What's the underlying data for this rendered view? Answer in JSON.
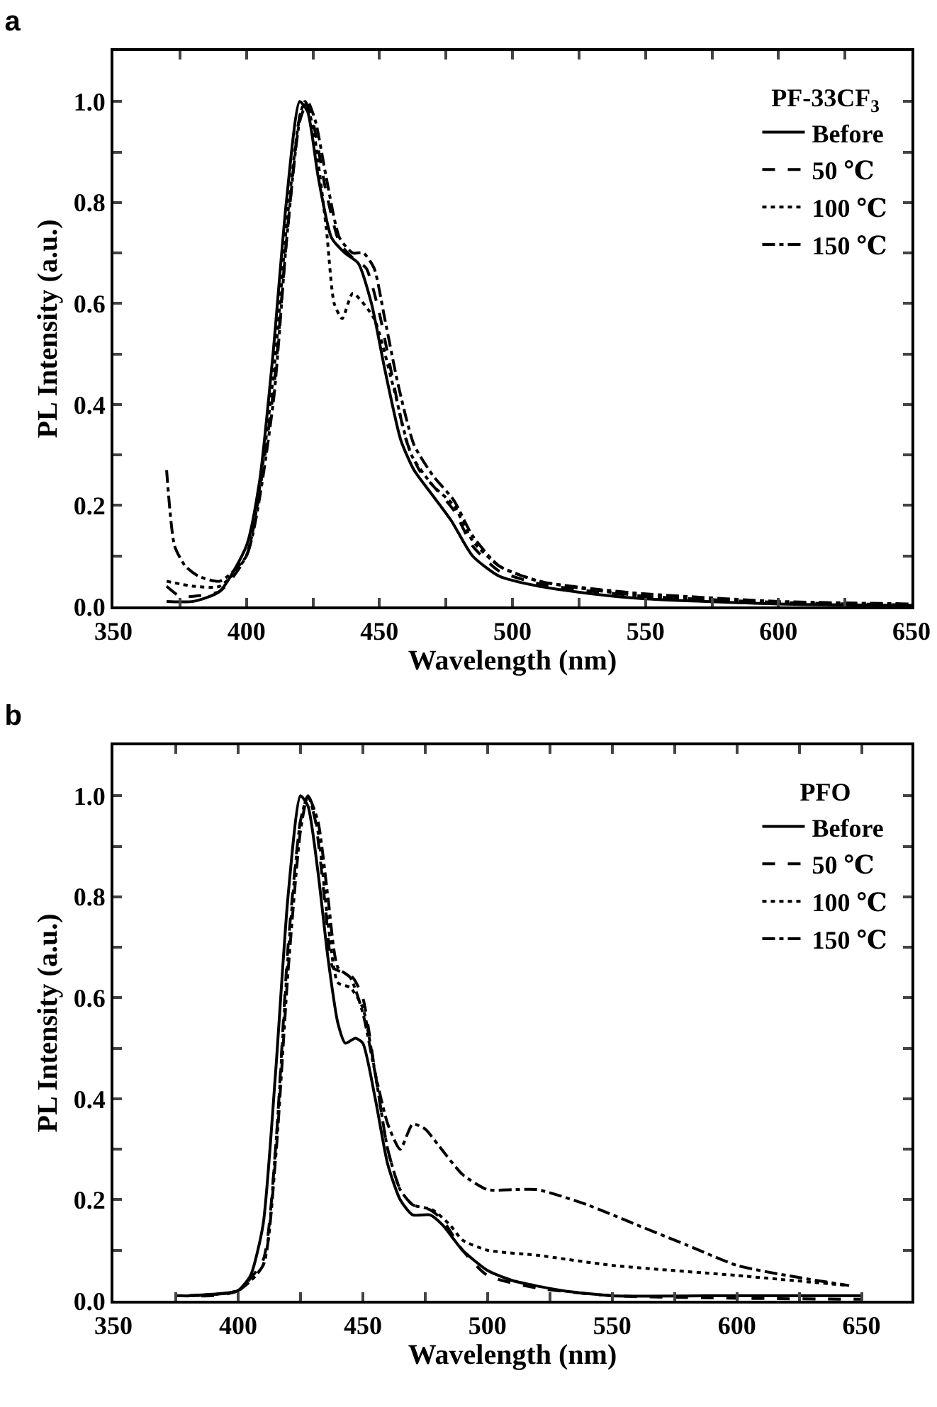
{
  "chart_data": [
    {
      "type": "line",
      "title": "a",
      "xlabel": "Wavelength (nm)",
      "ylabel": "PL Intensity (a.u.)",
      "legend_title": "PF-33CF$_{3}$",
      "legend": "top right",
      "grid": false,
      "xlim": [
        350,
        650
      ],
      "ylim": [
        0,
        1.1
      ],
      "xticks": [
        350,
        {
          "value": 375,
          "label": null
        },
        400,
        {
          "value": 425,
          "label": null
        },
        450,
        {
          "value": 475,
          "label": null
        },
        500,
        {
          "value": 525,
          "label": null
        },
        550,
        {
          "value": 575,
          "label": null
        },
        600,
        {
          "value": 625,
          "label": null
        },
        650
      ],
      "yticks": [
        {
          "value": 0,
          "label": "0.0"
        },
        {
          "value": 0.1,
          "label": null
        },
        0.2,
        {
          "value": 0.3,
          "label": null
        },
        0.4,
        {
          "value": 0.5,
          "label": null
        },
        0.6,
        {
          "value": 0.7,
          "label": null
        },
        0.8,
        {
          "value": 0.9,
          "label": null
        },
        {
          "value": 1,
          "label": "1.0"
        }
      ],
      "series": [
        {
          "name": "Before",
          "color": "#000000",
          "line_style": "solid",
          "x": [
            370,
            380,
            390,
            400,
            405,
            410,
            415,
            420,
            423,
            427,
            432,
            437,
            442,
            447,
            452,
            458,
            463,
            470,
            477,
            485,
            495,
            510,
            530,
            550,
            600,
            650
          ],
          "values": [
            0.01,
            0.01,
            0.03,
            0.12,
            0.25,
            0.5,
            0.8,
            1.0,
            0.98,
            0.85,
            0.73,
            0.7,
            0.68,
            0.6,
            0.47,
            0.33,
            0.27,
            0.22,
            0.17,
            0.1,
            0.06,
            0.04,
            0.025,
            0.015,
            0.005,
            0.002
          ]
        },
        {
          "name": "50 ℃",
          "color": "#000000",
          "line_style": "dashed",
          "x": [
            370,
            375,
            380,
            390,
            400,
            410,
            415,
            420,
            422,
            425,
            430,
            435,
            440,
            445,
            450,
            455,
            460,
            465,
            470,
            478,
            485,
            495,
            510,
            530,
            550,
            600,
            650
          ],
          "values": [
            0.04,
            0.02,
            0.02,
            0.03,
            0.1,
            0.42,
            0.72,
            0.97,
            1.0,
            0.96,
            0.82,
            0.72,
            0.69,
            0.67,
            0.58,
            0.45,
            0.33,
            0.27,
            0.24,
            0.19,
            0.12,
            0.07,
            0.045,
            0.03,
            0.02,
            0.008,
            0.003
          ]
        },
        {
          "name": "100 ℃",
          "color": "#000000",
          "line_style": "dotted",
          "x": [
            370,
            380,
            390,
            400,
            410,
            415,
            420,
            422,
            425,
            430,
            433,
            436,
            440,
            448,
            455,
            462,
            470,
            478,
            485,
            495,
            510,
            550,
            600,
            650
          ],
          "values": [
            0.05,
            0.04,
            0.04,
            0.1,
            0.45,
            0.75,
            0.97,
            1.0,
            0.95,
            0.75,
            0.6,
            0.57,
            0.62,
            0.57,
            0.44,
            0.3,
            0.24,
            0.2,
            0.13,
            0.08,
            0.05,
            0.02,
            0.008,
            0.003
          ]
        },
        {
          "name": "150 ℃",
          "color": "#000000",
          "line_style": "dashdot",
          "x": [
            370,
            373,
            377,
            382,
            390,
            400,
            410,
            415,
            420,
            423,
            426,
            430,
            435,
            440,
            444,
            448,
            452,
            457,
            463,
            470,
            478,
            485,
            495,
            510,
            530,
            550,
            600,
            650
          ],
          "values": [
            0.27,
            0.12,
            0.08,
            0.06,
            0.05,
            0.1,
            0.4,
            0.72,
            0.96,
            1.0,
            0.96,
            0.85,
            0.73,
            0.7,
            0.7,
            0.67,
            0.57,
            0.44,
            0.32,
            0.26,
            0.21,
            0.14,
            0.08,
            0.05,
            0.035,
            0.025,
            0.01,
            0.005
          ]
        }
      ]
    },
    {
      "type": "line",
      "title": "b",
      "xlabel": "Wavelength (nm)",
      "ylabel": "PL Intensity (a.u.)",
      "legend_title": "PFO",
      "legend": "top right",
      "grid": false,
      "xlim": [
        350,
        670
      ],
      "ylim": [
        0,
        1.1
      ],
      "xticks": [
        350,
        {
          "value": 375,
          "label": null
        },
        400,
        {
          "value": 425,
          "label": null
        },
        450,
        {
          "value": 475,
          "label": null
        },
        500,
        {
          "value": 525,
          "label": null
        },
        550,
        {
          "value": 575,
          "label": null
        },
        600,
        {
          "value": 625,
          "label": null
        },
        650
      ],
      "yticks": [
        {
          "value": 0,
          "label": "0.0"
        },
        {
          "value": 0.1,
          "label": null
        },
        0.2,
        {
          "value": 0.3,
          "label": null
        },
        0.4,
        {
          "value": 0.5,
          "label": null
        },
        0.6,
        {
          "value": 0.7,
          "label": null
        },
        0.8,
        {
          "value": 0.9,
          "label": null
        },
        {
          "value": 1,
          "label": "1.0"
        }
      ],
      "series": [
        {
          "name": "Before",
          "color": "#000000",
          "line_style": "solid",
          "x": [
            380,
            395,
            400,
            405,
            410,
            415,
            420,
            425,
            428,
            432,
            436,
            440,
            443,
            447,
            450,
            455,
            460,
            465,
            470,
            477,
            482,
            490,
            500,
            510,
            530,
            550,
            600,
            650
          ],
          "values": [
            0.01,
            0.015,
            0.02,
            0.05,
            0.15,
            0.45,
            0.8,
            1.0,
            0.98,
            0.85,
            0.68,
            0.55,
            0.51,
            0.52,
            0.51,
            0.4,
            0.27,
            0.2,
            0.17,
            0.17,
            0.15,
            0.1,
            0.06,
            0.04,
            0.02,
            0.01,
            0.01,
            0.01
          ]
        },
        {
          "name": "50 ℃",
          "color": "#000000",
          "line_style": "dashed",
          "x": [
            375,
            390,
            400,
            410,
            415,
            420,
            425,
            428,
            431,
            435,
            438,
            442,
            446,
            450,
            455,
            460,
            465,
            470,
            477,
            482,
            490,
            500,
            520,
            550,
            600,
            650
          ],
          "values": [
            0.01,
            0.01,
            0.02,
            0.08,
            0.3,
            0.7,
            0.95,
            1.0,
            0.95,
            0.78,
            0.66,
            0.65,
            0.64,
            0.6,
            0.45,
            0.3,
            0.22,
            0.19,
            0.18,
            0.16,
            0.1,
            0.05,
            0.025,
            0.01,
            0.005,
            0.003
          ]
        },
        {
          "name": "100 ℃",
          "color": "#000000",
          "line_style": "dotted",
          "x": [
            380,
            400,
            410,
            415,
            420,
            425,
            428,
            432,
            436,
            440,
            445,
            450,
            455,
            460,
            465,
            470,
            478,
            485,
            490,
            500,
            520,
            550,
            600,
            645
          ],
          "values": [
            0.01,
            0.02,
            0.07,
            0.3,
            0.68,
            0.95,
            1.0,
            0.93,
            0.75,
            0.63,
            0.62,
            0.58,
            0.45,
            0.3,
            0.22,
            0.19,
            0.18,
            0.15,
            0.12,
            0.1,
            0.09,
            0.07,
            0.05,
            0.03
          ]
        },
        {
          "name": "150 ℃",
          "color": "#000000",
          "line_style": "dashdot",
          "x": [
            380,
            400,
            410,
            415,
            420,
            425,
            428,
            432,
            436,
            440,
            445,
            450,
            455,
            460,
            465,
            470,
            475,
            480,
            490,
            500,
            510,
            520,
            540,
            560,
            580,
            600,
            620,
            645
          ],
          "values": [
            0.01,
            0.02,
            0.07,
            0.28,
            0.65,
            0.93,
            1.0,
            0.95,
            0.8,
            0.66,
            0.64,
            0.57,
            0.45,
            0.35,
            0.3,
            0.35,
            0.34,
            0.31,
            0.25,
            0.22,
            0.22,
            0.22,
            0.19,
            0.15,
            0.11,
            0.07,
            0.05,
            0.03
          ]
        }
      ]
    }
  ]
}
